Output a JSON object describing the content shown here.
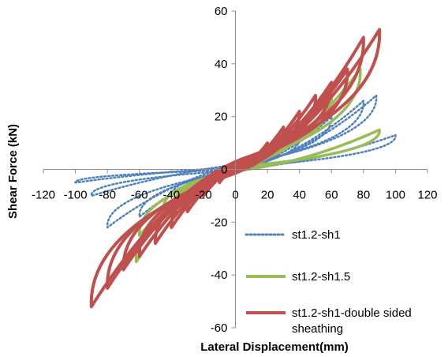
{
  "chart_data": {
    "type": "line",
    "title": "",
    "xlabel": "Lateral Displacement(mm)",
    "ylabel": "Shear Force (kN)",
    "xlim": [
      -120,
      120
    ],
    "ylim": [
      -60,
      60
    ],
    "x_ticks": [
      -120,
      -100,
      -80,
      -60,
      -40,
      -20,
      0,
      20,
      40,
      60,
      80,
      100,
      120
    ],
    "y_ticks": [
      -60,
      -40,
      -20,
      0,
      20,
      40,
      60
    ],
    "x_tick_labels": [
      "-120",
      "-100",
      "-80",
      "-60",
      "-40",
      "-20",
      "0",
      "20",
      "40",
      "60",
      "80",
      "100",
      "120"
    ],
    "y_tick_labels": [
      "-60",
      "-40",
      "-20",
      "0",
      "20",
      "40",
      "60"
    ],
    "grid": false,
    "legend_position": "right",
    "series": [
      {
        "name": "st1.2-sh1",
        "color": "#4f81bd",
        "style": "dotted",
        "cycles": [
          {
            "xmax": 20,
            "ymax": 6,
            "xmin": -20,
            "ymin": -5
          },
          {
            "xmax": 40,
            "ymax": 12,
            "xmin": -40,
            "ymin": -10
          },
          {
            "xmax": 60,
            "ymax": 20,
            "xmin": -60,
            "ymin": -18
          },
          {
            "xmax": 80,
            "ymax": 26,
            "xmin": -80,
            "ymin": -22
          },
          {
            "xmax": 88,
            "ymax": 28,
            "xmin": -90,
            "ymin": -10
          },
          {
            "xmax": 100,
            "ymax": 13,
            "xmin": -100,
            "ymin": -5
          }
        ]
      },
      {
        "name": "st1.2-sh1.5",
        "color": "#9bbb59",
        "style": "solid",
        "cycles": [
          {
            "xmax": 20,
            "ymax": 8,
            "xmin": -20,
            "ymin": -7
          },
          {
            "xmax": 40,
            "ymax": 16,
            "xmin": -40,
            "ymin": -15
          },
          {
            "xmax": 60,
            "ymax": 28,
            "xmin": -60,
            "ymin": -25
          },
          {
            "xmax": 78,
            "ymax": 38,
            "xmin": -62,
            "ymin": -35
          },
          {
            "xmax": 90,
            "ymax": 15,
            "xmin": -45,
            "ymin": -15
          }
        ]
      },
      {
        "name": "st1.2-sh1-double sided sheathing",
        "color": "#c0504d",
        "style": "solid",
        "cycles": [
          {
            "xmax": 10,
            "ymax": 5,
            "xmin": -10,
            "ymin": -5
          },
          {
            "xmax": 20,
            "ymax": 10,
            "xmin": -20,
            "ymin": -10
          },
          {
            "xmax": 30,
            "ymax": 16,
            "xmin": -30,
            "ymin": -16
          },
          {
            "xmax": 40,
            "ymax": 22,
            "xmin": -40,
            "ymin": -22
          },
          {
            "xmax": 50,
            "ymax": 28,
            "xmin": -50,
            "ymin": -28
          },
          {
            "xmax": 60,
            "ymax": 33,
            "xmin": -60,
            "ymin": -33
          },
          {
            "xmax": 70,
            "ymax": 38,
            "xmin": -70,
            "ymin": -38
          },
          {
            "xmax": 80,
            "ymax": 50,
            "xmin": -80,
            "ymin": -45
          },
          {
            "xmax": 90,
            "ymax": 53,
            "xmin": -90,
            "ymin": -52
          }
        ]
      }
    ]
  }
}
